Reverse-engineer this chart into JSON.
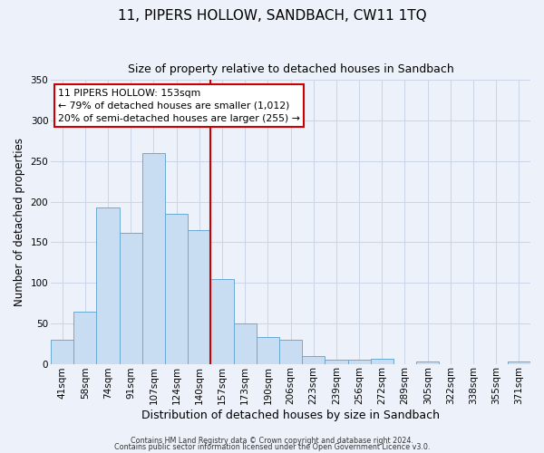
{
  "title": "11, PIPERS HOLLOW, SANDBACH, CW11 1TQ",
  "subtitle": "Size of property relative to detached houses in Sandbach",
  "xlabel": "Distribution of detached houses by size in Sandbach",
  "ylabel": "Number of detached properties",
  "bar_labels": [
    "41sqm",
    "58sqm",
    "74sqm",
    "91sqm",
    "107sqm",
    "124sqm",
    "140sqm",
    "157sqm",
    "173sqm",
    "190sqm",
    "206sqm",
    "223sqm",
    "239sqm",
    "256sqm",
    "272sqm",
    "289sqm",
    "305sqm",
    "322sqm",
    "338sqm",
    "355sqm",
    "371sqm"
  ],
  "bar_values": [
    30,
    64,
    193,
    161,
    260,
    185,
    165,
    104,
    50,
    33,
    30,
    10,
    5,
    5,
    6,
    0,
    3,
    0,
    0,
    0,
    3
  ],
  "bar_color": "#c8ddf2",
  "bar_edge_color": "#6aaad4",
  "vline_color": "#cc0000",
  "vline_index": 7,
  "ylim": [
    0,
    350
  ],
  "yticks": [
    0,
    50,
    100,
    150,
    200,
    250,
    300,
    350
  ],
  "annotation_title": "11 PIPERS HOLLOW: 153sqm",
  "annotation_line1": "← 79% of detached houses are smaller (1,012)",
  "annotation_line2": "20% of semi-detached houses are larger (255) →",
  "annotation_box_facecolor": "#ffffff",
  "annotation_box_edgecolor": "#cc0000",
  "grid_color": "#ccd6e8",
  "bg_color": "#edf2fa",
  "title_fontsize": 11,
  "subtitle_fontsize": 9,
  "ylabel_fontsize": 8.5,
  "xlabel_fontsize": 9,
  "tick_fontsize": 7.5,
  "footer1": "Contains HM Land Registry data © Crown copyright and database right 2024.",
  "footer2": "Contains public sector information licensed under the Open Government Licence v3.0."
}
